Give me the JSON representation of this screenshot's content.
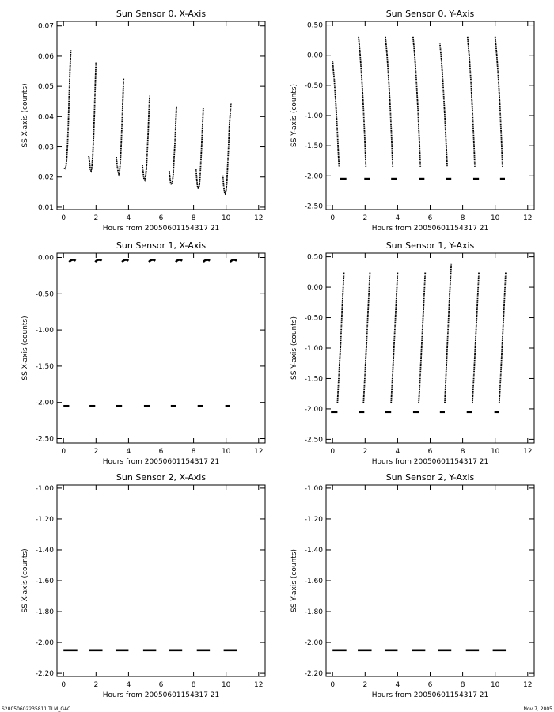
{
  "footer": {
    "left": "S20050602235811.TLM_GAC",
    "right": "Nov  7, 2005"
  },
  "chart_data": [
    {
      "type": "scatter",
      "title": "Sun Sensor 0, X-Axis",
      "xlabel": "Hours from 20050601154317 21",
      "ylabel": "SS X-axis (counts)",
      "xlim": [
        -0.4,
        12.4
      ],
      "ylim": [
        0.0092,
        0.0715
      ],
      "xticks": [
        0,
        2,
        4,
        6,
        8,
        10,
        12
      ],
      "xticklabels": [
        "0",
        "2",
        "4",
        "6",
        "8",
        "10",
        "12"
      ],
      "yticks": [
        0.01,
        0.02,
        0.03,
        0.04,
        0.05,
        0.06,
        0.07
      ],
      "yticklabels": [
        "0.01",
        "0.02",
        "0.03",
        "0.04",
        "0.05",
        "0.06",
        "0.07"
      ],
      "series": [
        {
          "kind": "curve",
          "points": [
            [
              0.05,
              0.023
            ],
            [
              0.1,
              0.0225
            ],
            [
              0.15,
              0.0235
            ],
            [
              0.2,
              0.026
            ],
            [
              0.25,
              0.031
            ],
            [
              0.3,
              0.038
            ],
            [
              0.35,
              0.047
            ],
            [
              0.4,
              0.055
            ],
            [
              0.45,
              0.062
            ]
          ]
        },
        {
          "kind": "curve",
          "points": [
            [
              1.55,
              0.027
            ],
            [
              1.6,
              0.025
            ],
            [
              1.65,
              0.0225
            ],
            [
              1.7,
              0.022
            ],
            [
              1.75,
              0.0235
            ],
            [
              1.8,
              0.027
            ],
            [
              1.85,
              0.033
            ],
            [
              1.9,
              0.041
            ],
            [
              1.95,
              0.05
            ],
            [
              2.0,
              0.058
            ]
          ]
        },
        {
          "kind": "curve",
          "points": [
            [
              3.25,
              0.0265
            ],
            [
              3.3,
              0.024
            ],
            [
              3.35,
              0.022
            ],
            [
              3.4,
              0.021
            ],
            [
              3.45,
              0.022
            ],
            [
              3.5,
              0.025
            ],
            [
              3.55,
              0.031
            ],
            [
              3.6,
              0.038
            ],
            [
              3.65,
              0.045
            ],
            [
              3.7,
              0.0525
            ]
          ]
        },
        {
          "kind": "curve",
          "points": [
            [
              4.85,
              0.024
            ],
            [
              4.9,
              0.0215
            ],
            [
              4.95,
              0.0195
            ],
            [
              5.0,
              0.019
            ],
            [
              5.05,
              0.02
            ],
            [
              5.1,
              0.023
            ],
            [
              5.15,
              0.028
            ],
            [
              5.2,
              0.034
            ],
            [
              5.25,
              0.041
            ],
            [
              5.3,
              0.047
            ]
          ]
        },
        {
          "kind": "curve",
          "points": [
            [
              6.5,
              0.022
            ],
            [
              6.55,
              0.0195
            ],
            [
              6.6,
              0.0178
            ],
            [
              6.65,
              0.0175
            ],
            [
              6.7,
              0.0185
            ],
            [
              6.75,
              0.021
            ],
            [
              6.8,
              0.026
            ],
            [
              6.85,
              0.031
            ],
            [
              6.9,
              0.037
            ],
            [
              6.95,
              0.0435
            ]
          ]
        },
        {
          "kind": "curve",
          "points": [
            [
              8.15,
              0.0225
            ],
            [
              8.2,
              0.019
            ],
            [
              8.25,
              0.0168
            ],
            [
              8.3,
              0.016
            ],
            [
              8.35,
              0.017
            ],
            [
              8.4,
              0.02
            ],
            [
              8.45,
              0.025
            ],
            [
              8.5,
              0.031
            ],
            [
              8.55,
              0.037
            ],
            [
              8.6,
              0.043
            ]
          ]
        },
        {
          "kind": "curve",
          "points": [
            [
              9.8,
              0.0205
            ],
            [
              9.85,
              0.017
            ],
            [
              9.9,
              0.015
            ],
            [
              9.95,
              0.0145
            ],
            [
              10.0,
              0.0155
            ],
            [
              10.05,
              0.0185
            ],
            [
              10.1,
              0.024
            ],
            [
              10.15,
              0.03
            ],
            [
              10.2,
              0.037
            ],
            [
              10.3,
              0.0445
            ]
          ]
        }
      ]
    },
    {
      "type": "scatter",
      "title": "Sun Sensor 0, Y-Axis",
      "xlabel": "Hours from 20050601154317 21",
      "ylabel": "SS Y-axis (counts)",
      "xlim": [
        -0.4,
        12.4
      ],
      "ylim": [
        -2.56,
        0.56
      ],
      "xticks": [
        0,
        2,
        4,
        6,
        8,
        10,
        12
      ],
      "xticklabels": [
        "0",
        "2",
        "4",
        "6",
        "8",
        "10",
        "12"
      ],
      "yticks": [
        -2.5,
        -2.0,
        -1.5,
        -1.0,
        -0.5,
        0.0,
        0.5
      ],
      "yticklabels": [
        "-2.50",
        "-2.00",
        "-1.50",
        "-1.00",
        "-0.50",
        "0.00",
        "0.50"
      ],
      "series": [
        {
          "kind": "curve",
          "points": [
            [
              0.0,
              -0.1
            ],
            [
              0.1,
              -0.4
            ],
            [
              0.2,
              -0.8
            ],
            [
              0.3,
              -1.3
            ],
            [
              0.35,
              -1.6
            ],
            [
              0.4,
              -1.85
            ]
          ]
        },
        {
          "kind": "curve",
          "points": [
            [
              1.6,
              0.3
            ],
            [
              1.7,
              0.0
            ],
            [
              1.8,
              -0.4
            ],
            [
              1.9,
              -0.9
            ],
            [
              2.0,
              -1.5
            ],
            [
              2.05,
              -1.85
            ]
          ]
        },
        {
          "kind": "curve",
          "points": [
            [
              3.25,
              0.3
            ],
            [
              3.35,
              0.0
            ],
            [
              3.45,
              -0.4
            ],
            [
              3.55,
              -0.9
            ],
            [
              3.65,
              -1.5
            ],
            [
              3.7,
              -1.85
            ]
          ]
        },
        {
          "kind": "curve",
          "points": [
            [
              4.95,
              0.3
            ],
            [
              5.05,
              0.0
            ],
            [
              5.15,
              -0.4
            ],
            [
              5.25,
              -0.9
            ],
            [
              5.35,
              -1.5
            ],
            [
              5.4,
              -1.85
            ]
          ]
        },
        {
          "kind": "curve",
          "points": [
            [
              6.6,
              0.2
            ],
            [
              6.7,
              -0.1
            ],
            [
              6.8,
              -0.5
            ],
            [
              6.9,
              -1.0
            ],
            [
              7.0,
              -1.55
            ],
            [
              7.05,
              -1.85
            ]
          ]
        },
        {
          "kind": "curve",
          "points": [
            [
              8.3,
              0.3
            ],
            [
              8.4,
              0.0
            ],
            [
              8.5,
              -0.4
            ],
            [
              8.6,
              -0.9
            ],
            [
              8.7,
              -1.5
            ],
            [
              8.75,
              -1.85
            ]
          ]
        },
        {
          "kind": "curve",
          "points": [
            [
              10.0,
              0.3
            ],
            [
              10.1,
              0.0
            ],
            [
              10.2,
              -0.4
            ],
            [
              10.3,
              -0.9
            ],
            [
              10.4,
              -1.5
            ],
            [
              10.45,
              -1.85
            ]
          ]
        },
        {
          "kind": "hline",
          "y": -2.05,
          "segments": [
            [
              0.45,
              0.85
            ],
            [
              1.95,
              2.3
            ],
            [
              3.6,
              3.95
            ],
            [
              5.3,
              5.65
            ],
            [
              6.95,
              7.3
            ],
            [
              8.65,
              9.0
            ],
            [
              10.3,
              10.6
            ]
          ]
        }
      ]
    },
    {
      "type": "scatter",
      "title": "Sun Sensor 1, X-Axis",
      "xlabel": "Hours from 20050601154317 21",
      "ylabel": "SS X-axis (counts)",
      "xlim": [
        -0.4,
        12.4
      ],
      "ylim": [
        -2.56,
        0.06
      ],
      "xticks": [
        0,
        2,
        4,
        6,
        8,
        10,
        12
      ],
      "xticklabels": [
        "0",
        "2",
        "4",
        "6",
        "8",
        "10",
        "12"
      ],
      "yticks": [
        -2.5,
        -2.0,
        -1.5,
        -1.0,
        -0.5,
        0.0
      ],
      "yticklabels": [
        "-2.50",
        "-2.00",
        "-1.50",
        "-1.00",
        "-0.50",
        "0.00"
      ],
      "series": [
        {
          "kind": "arc",
          "y": -0.04,
          "segments": [
            [
              0.35,
              0.75
            ],
            [
              1.95,
              2.35
            ],
            [
              3.6,
              4.0
            ],
            [
              5.25,
              5.65
            ],
            [
              6.9,
              7.3
            ],
            [
              8.6,
              9.0
            ],
            [
              10.25,
              10.65
            ]
          ]
        },
        {
          "kind": "hline",
          "y": -2.05,
          "segments": [
            [
              0.0,
              0.35
            ],
            [
              1.6,
              1.95
            ],
            [
              3.25,
              3.6
            ],
            [
              4.95,
              5.3
            ],
            [
              6.6,
              6.9
            ],
            [
              8.25,
              8.6
            ],
            [
              9.95,
              10.25
            ]
          ]
        }
      ]
    },
    {
      "type": "scatter",
      "title": "Sun Sensor 1, Y-Axis",
      "xlabel": "Hours from 20050601154317 21",
      "ylabel": "SS Y-axis (counts)",
      "xlim": [
        -0.4,
        12.4
      ],
      "ylim": [
        -2.56,
        0.56
      ],
      "xticks": [
        0,
        2,
        4,
        6,
        8,
        10,
        12
      ],
      "xticklabels": [
        "0",
        "2",
        "4",
        "6",
        "8",
        "10",
        "12"
      ],
      "yticks": [
        -2.5,
        -2.0,
        -1.5,
        -1.0,
        -0.5,
        0.0,
        0.5
      ],
      "yticklabels": [
        "-2.50",
        "-2.00",
        "-1.50",
        "-1.00",
        "-0.50",
        "0.00",
        "0.50"
      ],
      "series": [
        {
          "kind": "curve",
          "points": [
            [
              0.3,
              -1.9
            ],
            [
              0.4,
              -1.4
            ],
            [
              0.5,
              -0.9
            ],
            [
              0.6,
              -0.3
            ],
            [
              0.7,
              0.25
            ]
          ]
        },
        {
          "kind": "curve",
          "points": [
            [
              1.9,
              -1.9
            ],
            [
              2.0,
              -1.4
            ],
            [
              2.1,
              -0.85
            ],
            [
              2.2,
              -0.3
            ],
            [
              2.3,
              0.25
            ]
          ]
        },
        {
          "kind": "curve",
          "points": [
            [
              3.6,
              -1.9
            ],
            [
              3.7,
              -1.4
            ],
            [
              3.8,
              -0.85
            ],
            [
              3.9,
              -0.3
            ],
            [
              4.0,
              0.25
            ]
          ]
        },
        {
          "kind": "curve",
          "points": [
            [
              5.3,
              -1.9
            ],
            [
              5.4,
              -1.4
            ],
            [
              5.5,
              -0.85
            ],
            [
              5.6,
              -0.3
            ],
            [
              5.7,
              0.25
            ]
          ]
        },
        {
          "kind": "curve",
          "points": [
            [
              6.9,
              -1.9
            ],
            [
              7.0,
              -1.3
            ],
            [
              7.1,
              -0.7
            ],
            [
              7.2,
              -0.1
            ],
            [
              7.3,
              0.38
            ]
          ]
        },
        {
          "kind": "curve",
          "points": [
            [
              8.6,
              -1.9
            ],
            [
              8.7,
              -1.4
            ],
            [
              8.8,
              -0.85
            ],
            [
              8.9,
              -0.3
            ],
            [
              9.0,
              0.25
            ]
          ]
        },
        {
          "kind": "curve",
          "points": [
            [
              10.25,
              -1.9
            ],
            [
              10.35,
              -1.4
            ],
            [
              10.45,
              -0.85
            ],
            [
              10.55,
              -0.3
            ],
            [
              10.65,
              0.25
            ]
          ]
        },
        {
          "kind": "hline",
          "y": -2.05,
          "segments": [
            [
              -0.1,
              0.3
            ],
            [
              1.6,
              1.95
            ],
            [
              3.25,
              3.6
            ],
            [
              4.95,
              5.3
            ],
            [
              6.6,
              6.9
            ],
            [
              8.25,
              8.6
            ],
            [
              9.95,
              10.25
            ]
          ]
        }
      ]
    },
    {
      "type": "scatter",
      "title": "Sun Sensor 2, X-Axis",
      "xlabel": "Hours from 20050601154317 21",
      "ylabel": "SS X-axis (counts)",
      "xlim": [
        -0.4,
        12.4
      ],
      "ylim": [
        -2.22,
        -0.98
      ],
      "xticks": [
        0,
        2,
        4,
        6,
        8,
        10,
        12
      ],
      "xticklabels": [
        "0",
        "2",
        "4",
        "6",
        "8",
        "10",
        "12"
      ],
      "yticks": [
        -2.2,
        -2.0,
        -1.8,
        -1.6,
        -1.4,
        -1.2,
        -1.0
      ],
      "yticklabels": [
        "-2.20",
        "-2.00",
        "-1.80",
        "-1.60",
        "-1.40",
        "-1.20",
        "-1.00"
      ],
      "series": [
        {
          "kind": "hline",
          "y": -2.05,
          "segments": [
            [
              0.0,
              0.85
            ],
            [
              1.55,
              2.4
            ],
            [
              3.2,
              4.0
            ],
            [
              4.9,
              5.7
            ],
            [
              6.5,
              7.3
            ],
            [
              8.2,
              9.0
            ],
            [
              9.85,
              10.65
            ]
          ]
        }
      ]
    },
    {
      "type": "scatter",
      "title": "Sun Sensor 2, Y-Axis",
      "xlabel": "Hours from 20050601154317 21",
      "ylabel": "SS Y-axis (counts)",
      "xlim": [
        -0.4,
        12.4
      ],
      "ylim": [
        -2.22,
        -0.98
      ],
      "xticks": [
        0,
        2,
        4,
        6,
        8,
        10,
        12
      ],
      "xticklabels": [
        "0",
        "2",
        "4",
        "6",
        "8",
        "10",
        "12"
      ],
      "yticks": [
        -2.2,
        -2.0,
        -1.8,
        -1.6,
        -1.4,
        -1.2,
        -1.0
      ],
      "yticklabels": [
        "-2.20",
        "-2.00",
        "-1.80",
        "-1.60",
        "-1.40",
        "-1.20",
        "-1.00"
      ],
      "series": [
        {
          "kind": "hline",
          "y": -2.05,
          "segments": [
            [
              0.0,
              0.85
            ],
            [
              1.55,
              2.4
            ],
            [
              3.2,
              4.0
            ],
            [
              4.9,
              5.7
            ],
            [
              6.5,
              7.3
            ],
            [
              8.2,
              9.0
            ],
            [
              9.85,
              10.65
            ]
          ]
        }
      ]
    }
  ]
}
